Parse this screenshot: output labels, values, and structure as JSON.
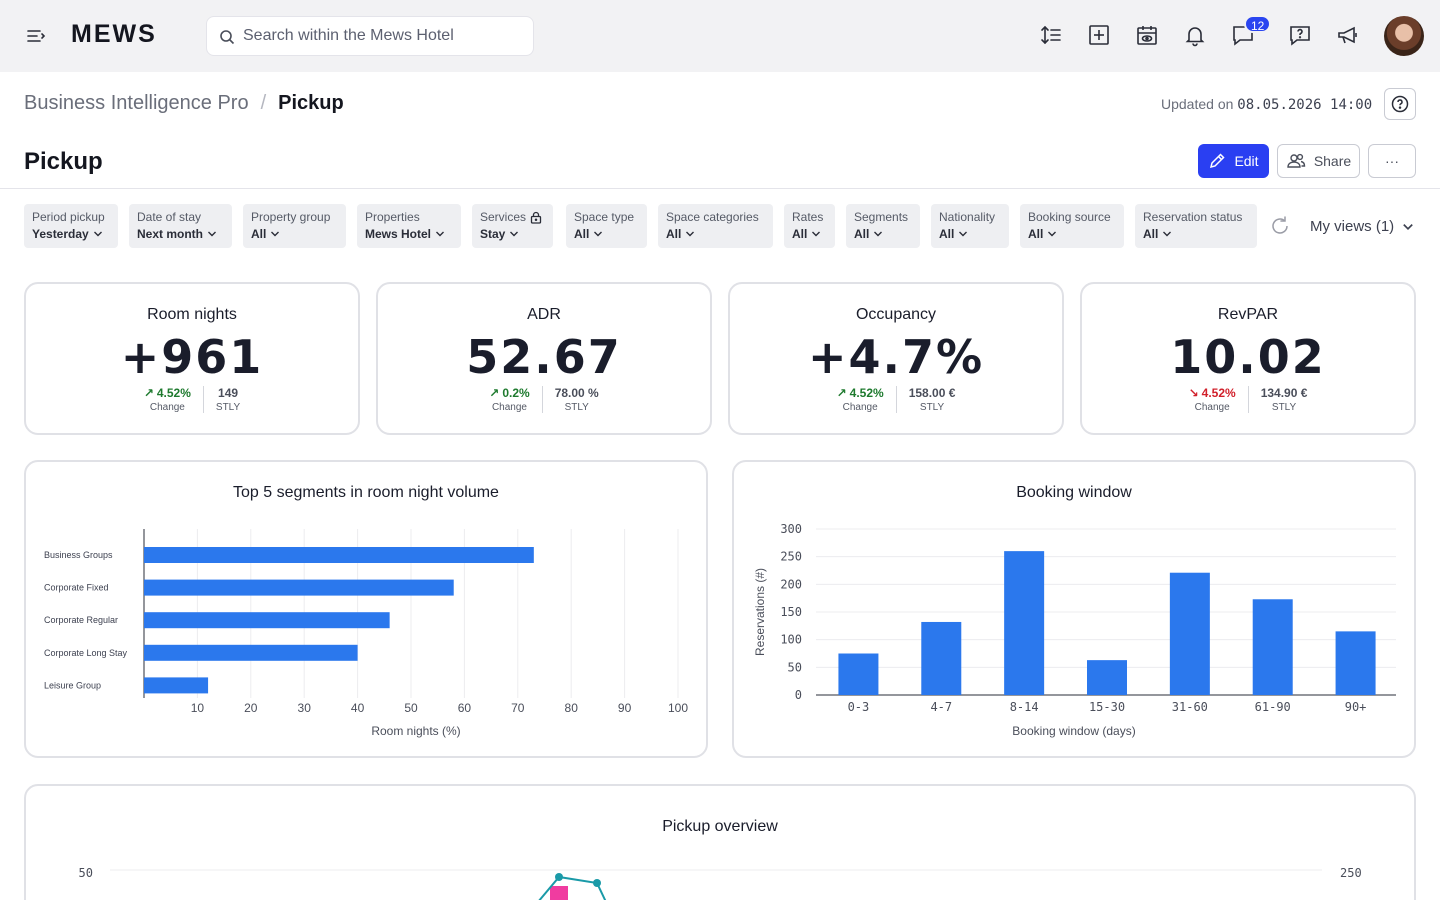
{
  "topbar": {
    "logo": "MEWS",
    "search_placeholder": "Search within the Mews Hotel",
    "notification_count": "12",
    "icons": [
      "menu-icon",
      "sort-icon",
      "add-icon",
      "calendar-view-icon",
      "bell-icon",
      "chat-icon",
      "help-icon",
      "megaphone-icon"
    ]
  },
  "header": {
    "breadcrumb_parent": "Business Intelligence Pro",
    "breadcrumb_separator": "/",
    "breadcrumb_current": "Pickup",
    "updated_label": "Updated on",
    "updated_value": "08.05.2026 14:00",
    "page_title": "Pickup",
    "edit_label": "Edit",
    "share_label": "Share",
    "more_label": "···"
  },
  "filters": [
    {
      "label": "Period pickup",
      "value": "Yesterday"
    },
    {
      "label": "Date of stay",
      "value": "Next month"
    },
    {
      "label": "Property group",
      "value": "All"
    },
    {
      "label": "Properties",
      "value": "Mews Hotel"
    },
    {
      "label": "Services",
      "value": "Stay",
      "locked": true
    },
    {
      "label": "Space type",
      "value": "All"
    },
    {
      "label": "Space categories",
      "value": "All"
    },
    {
      "label": "Rates",
      "value": "All"
    },
    {
      "label": "Segments",
      "value": "All"
    },
    {
      "label": "Nationality",
      "value": "All"
    },
    {
      "label": "Booking source",
      "value": "All"
    },
    {
      "label": "Reservation status",
      "value": "All"
    }
  ],
  "my_views": "My views (1)",
  "kpis": [
    {
      "title": "Room nights",
      "value": "+961",
      "change": "4.52%",
      "change_dir": "up",
      "change_label": "Change",
      "stly": "149",
      "stly_label": "STLY"
    },
    {
      "title": "ADR",
      "value": "52.67",
      "change": "0.2%",
      "change_dir": "up",
      "change_label": "Change",
      "stly": "78.00 %",
      "stly_label": "STLY"
    },
    {
      "title": "Occupancy",
      "value": "+4.7%",
      "change": "4.52%",
      "change_dir": "up",
      "change_label": "Change",
      "stly": "158.00 €",
      "stly_label": "STLY"
    },
    {
      "title": "RevPAR",
      "value": "10.02",
      "change": "4.52%",
      "change_dir": "down",
      "change_label": "Change",
      "stly": "134.90 €",
      "stly_label": "STLY"
    }
  ],
  "colors": {
    "accent": "#2a3ff2",
    "bar": "#2b78ed",
    "up": "#1e7a2e",
    "down": "#d1202b",
    "line_teal": "#1a9aa8",
    "marker_pink": "#f03ca0"
  },
  "chart_data": [
    {
      "type": "bar",
      "orientation": "horizontal",
      "title": "Top 5 segments in room night volume",
      "xlabel": "Room nights (%)",
      "ylabel": "",
      "categories": [
        "Business Groups",
        "Corporate Fixed",
        "Corporate Regular",
        "Corporate Long Stay",
        "Leisure Group"
      ],
      "values": [
        73,
        58,
        46,
        40,
        12
      ],
      "xticks": [
        10,
        20,
        30,
        40,
        50,
        60,
        70,
        80,
        90,
        100
      ],
      "xlim": [
        0,
        100
      ],
      "grid": "vertical"
    },
    {
      "type": "bar",
      "title": "Booking window",
      "xlabel": "Booking window (days)",
      "ylabel": "Reservations (#)",
      "categories": [
        "0-3",
        "4-7",
        "8-14",
        "15-30",
        "31-60",
        "61-90",
        "90+"
      ],
      "values": [
        75,
        132,
        260,
        63,
        221,
        173,
        115
      ],
      "yticks": [
        0,
        50,
        100,
        150,
        200,
        250,
        300
      ],
      "ylim": [
        0,
        300
      ],
      "grid": "horizontal"
    },
    {
      "type": "line",
      "title": "Pickup overview",
      "left_axis_top_tick": "50",
      "right_axis_top_tick": "250"
    }
  ]
}
